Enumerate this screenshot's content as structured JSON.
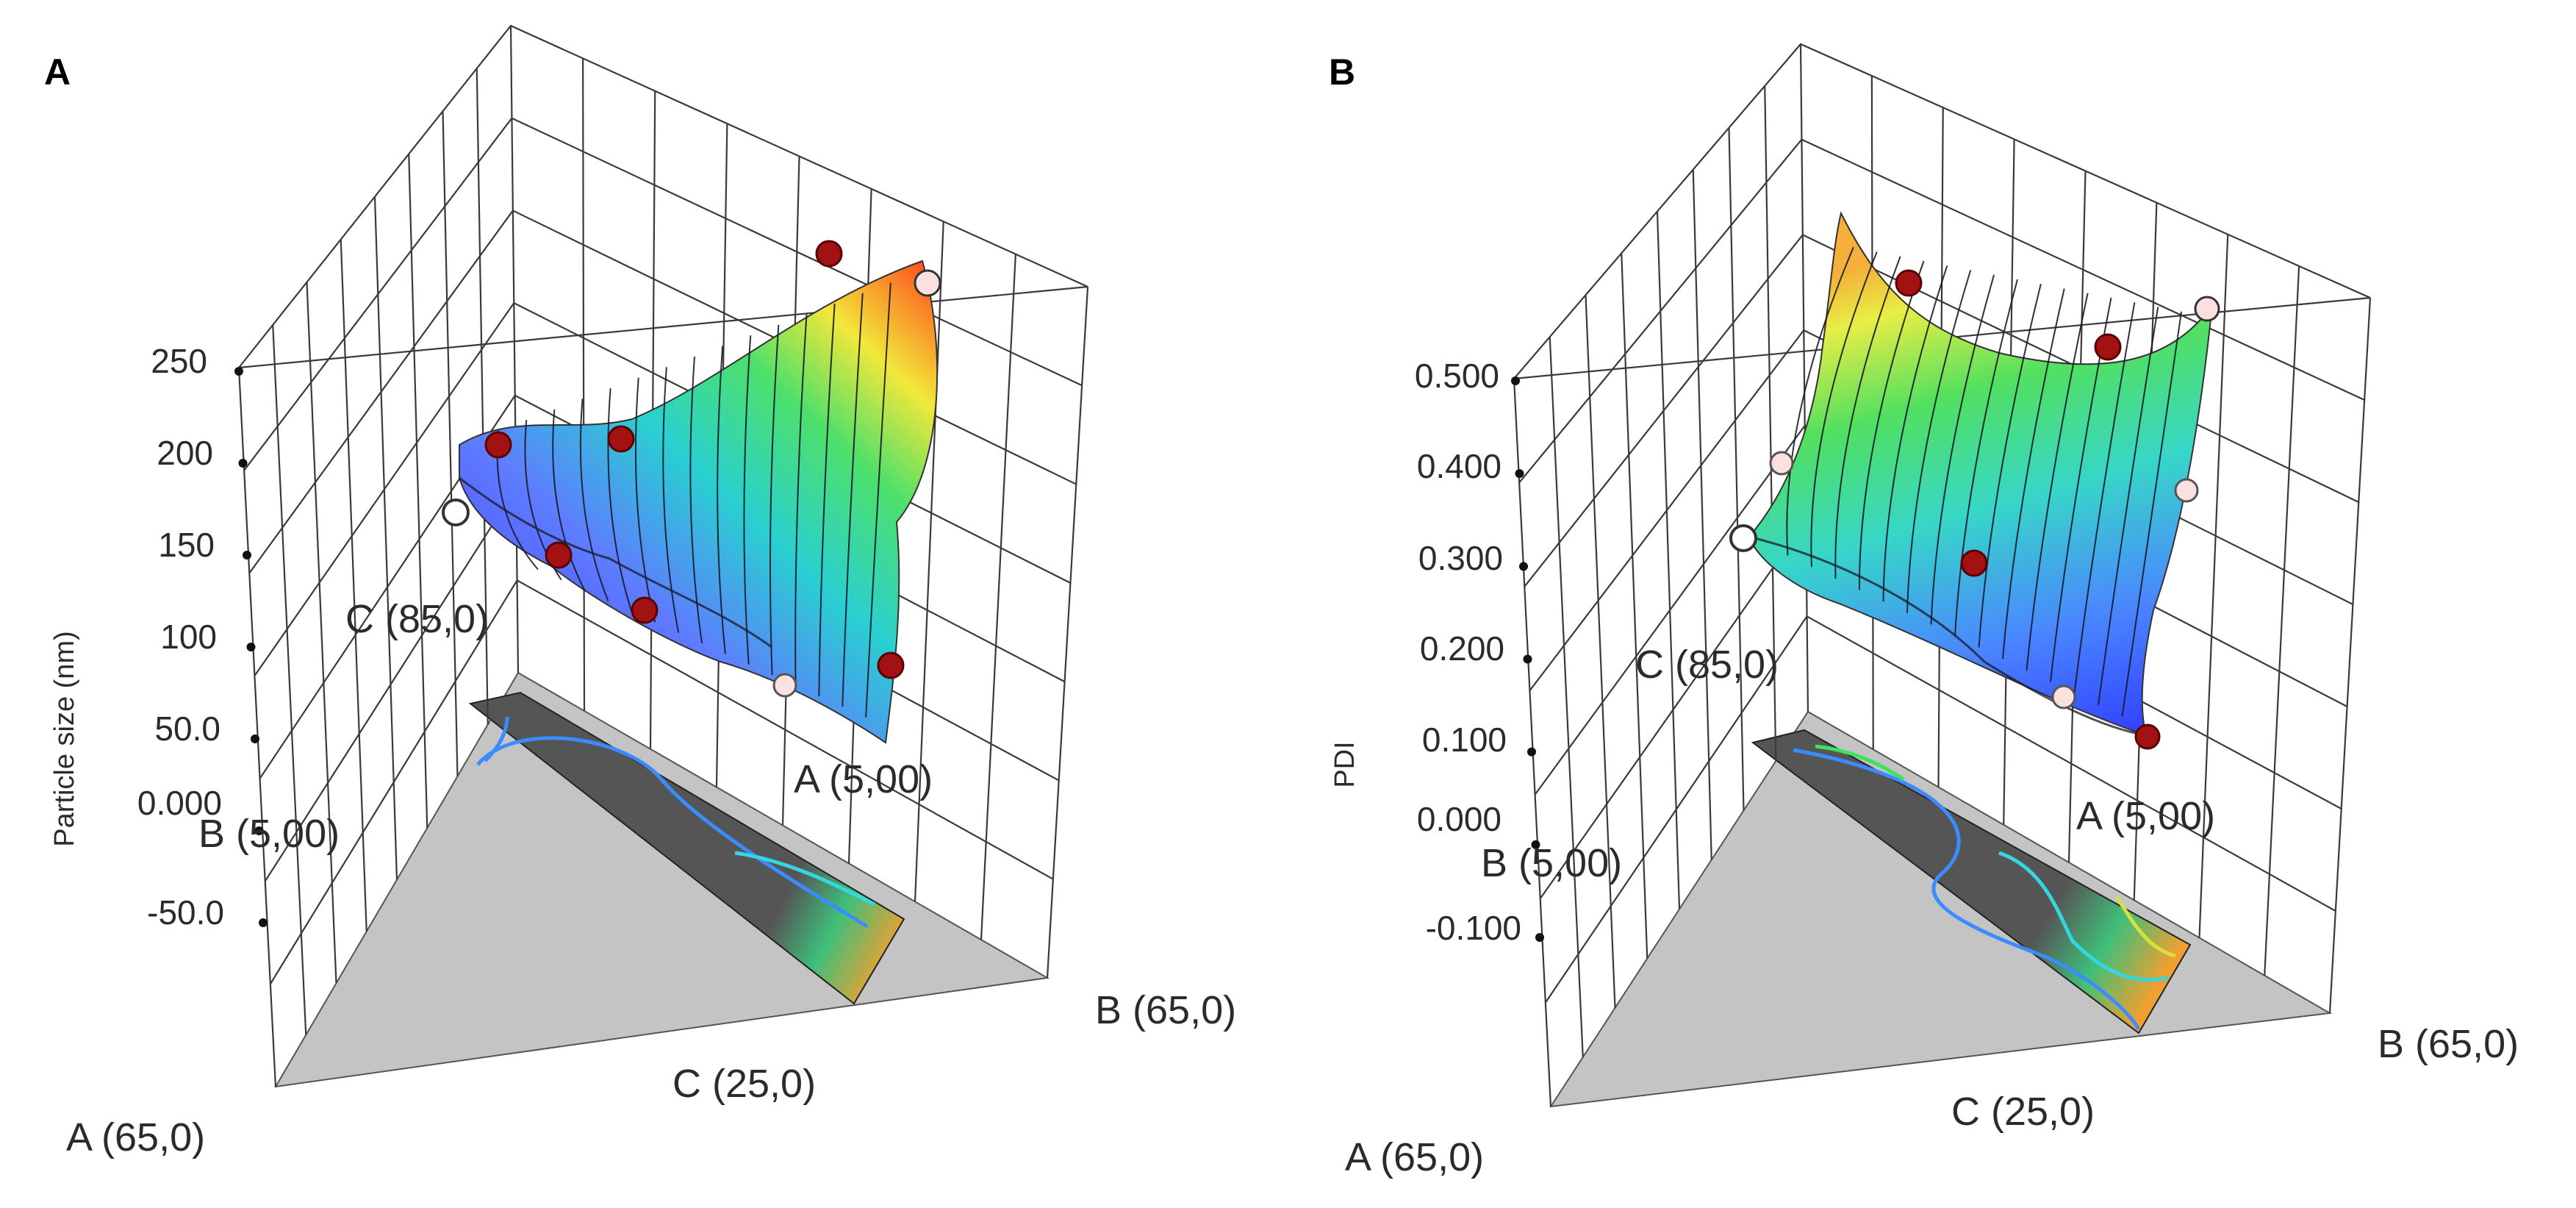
{
  "figure": {
    "description_visible": false
  },
  "chart_data": [
    {
      "type": "surface3d",
      "panel_label": "A",
      "zlabel": "Particle size (nm)",
      "z_ticks": [
        "250",
        "200",
        "150",
        "100",
        "50.0",
        "0.000",
        "-50.0"
      ],
      "zlim": [
        -50,
        250
      ],
      "vertex_labels": {
        "A_high": "A (65,0)",
        "B_high": "B (65,0)",
        "C_high": "C (85,0)",
        "A_low": "A (5,00)",
        "B_low": "B (5,00)",
        "C_low": "C (25,0)"
      },
      "design_points": [
        {
          "z": 200,
          "above_surface": true
        },
        {
          "z": 150,
          "above_surface": true
        },
        {
          "z": 125,
          "above_surface": true
        },
        {
          "z": 110,
          "above_surface": true
        },
        {
          "z": 220,
          "above_surface": true
        },
        {
          "z": 95,
          "above_surface": true
        },
        {
          "z": 135,
          "above_surface": false
        },
        {
          "z": 75,
          "above_surface": false
        },
        {
          "z": 210,
          "above_surface": false
        }
      ]
    },
    {
      "type": "surface3d",
      "panel_label": "B",
      "zlabel": "PDI",
      "z_ticks": [
        "0.500",
        "0.400",
        "0.300",
        "0.200",
        "0.100",
        "0.000",
        "-0.100"
      ],
      "zlim": [
        -0.1,
        0.5
      ],
      "vertex_labels": {
        "A_high": "A (65,0)",
        "B_high": "B (65,0)",
        "C_high": "C (85,0)",
        "A_low": "A (5,00)",
        "B_low": "B (5,00)",
        "C_low": "C (25,0)"
      },
      "design_points": [
        {
          "z": 0.48,
          "above_surface": true
        },
        {
          "z": 0.42,
          "above_surface": true
        },
        {
          "z": 0.3,
          "above_surface": true
        },
        {
          "z": 0.1,
          "above_surface": true
        },
        {
          "z": 0.3,
          "above_surface": false
        },
        {
          "z": 0.38,
          "above_surface": false
        },
        {
          "z": 0.35,
          "above_surface": false
        },
        {
          "z": 0.2,
          "above_surface": false
        },
        {
          "z": 0.45,
          "above_surface": false
        }
      ]
    }
  ]
}
